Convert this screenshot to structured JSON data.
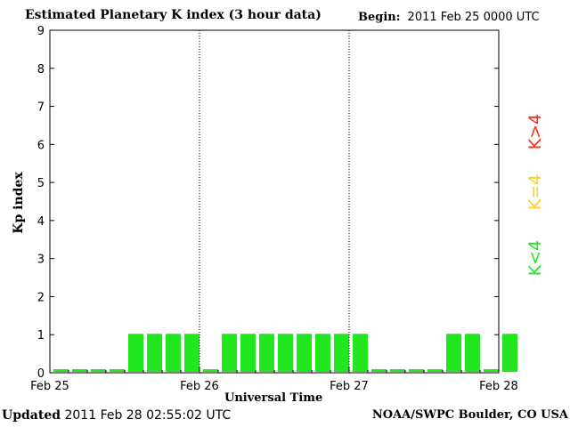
{
  "header": {
    "title": "Estimated Planetary K index (3 hour data)",
    "begin_label": "Begin:",
    "begin_value": "2011 Feb 25 0000 UTC"
  },
  "footer": {
    "updated_label": "Updated",
    "updated_value": "2011 Feb 28 02:55:02 UTC",
    "credit": "NOAA/SWPC Boulder, CO USA"
  },
  "legend": {
    "high": "K>4",
    "equal": "K=4",
    "low": "K<4",
    "colors": {
      "high": "#ff2a1a",
      "equal": "#ffd21a",
      "low": "#22e61e"
    }
  },
  "chart_data": {
    "type": "bar",
    "title": "Estimated Planetary K index (3 hour data)",
    "xlabel": "Universal Time",
    "ylabel": "Kp index",
    "ylim": [
      0,
      9
    ],
    "yticks": [
      0,
      1,
      2,
      3,
      4,
      5,
      6,
      7,
      8,
      9
    ],
    "xticks": [
      "Feb 25",
      "Feb 26",
      "Feb 27",
      "Feb 28"
    ],
    "interval_hours": 3,
    "values": [
      0,
      0,
      0,
      0,
      1,
      1,
      1,
      1,
      0,
      1,
      1,
      1,
      1,
      1,
      1,
      1,
      1,
      0,
      0,
      0,
      0,
      1,
      1,
      0,
      1
    ],
    "bar_color": "#22e61e",
    "grid": false,
    "day_separators": true
  }
}
